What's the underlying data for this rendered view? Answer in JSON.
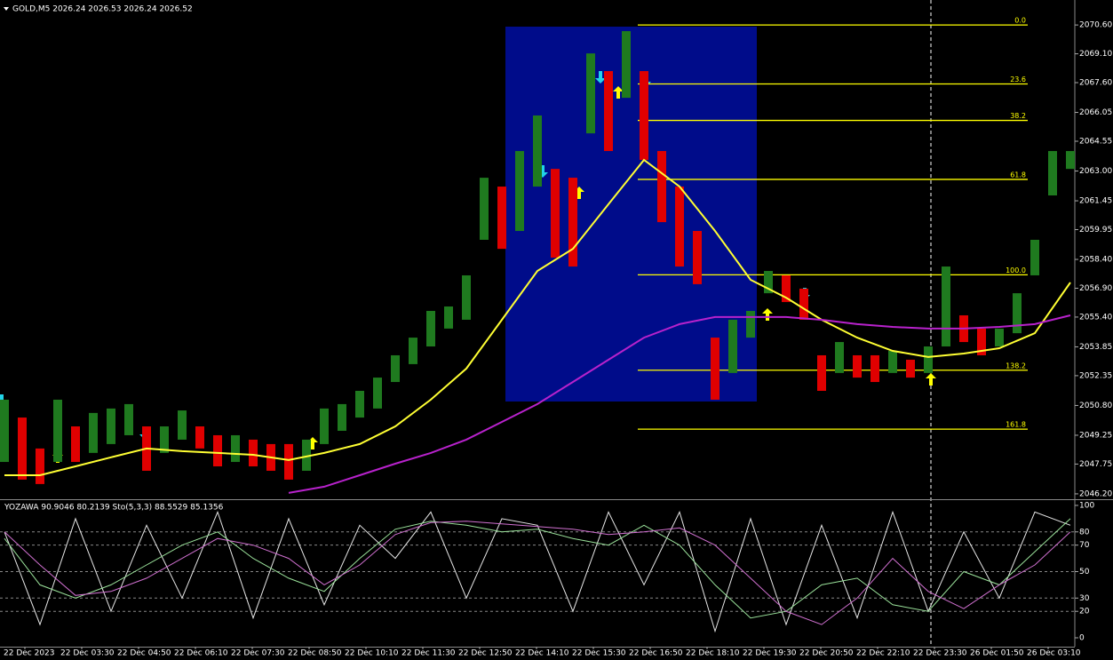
{
  "chart_data": [
    {
      "type": "ohlc-bars",
      "title": "GOLD,M5 2026.24 2026.53 2026.24 2026.52",
      "high": [
        2051.1,
        2050.17,
        2048.56,
        2051.1,
        2049.71,
        2050.41,
        2050.64,
        2050.87,
        2049.71,
        2049.71,
        2050.54,
        2049.71,
        2049.25,
        2049.25,
        2049.02,
        2048.79,
        2048.79,
        2049.02,
        2050.64,
        2050.87,
        2051.56,
        2052.25,
        2053.41,
        2054.33,
        2055.72,
        2055.95,
        2057.57,
        2062.65,
        2062.19,
        2064.04,
        2065.89,
        2063.11,
        2062.65,
        2069.12,
        2068.2,
        2070.28,
        2068.2,
        2064.04,
        2062.19,
        2059.88,
        2054.33,
        2055.26,
        2055.72,
        2057.8,
        2057.57,
        2056.88,
        2053.41,
        2054.1,
        2053.41,
        2053.41,
        2053.64,
        2053.18,
        2053.87,
        2058.03,
        2055.49,
        2054.8,
        2054.8,
        2056.64,
        2059.42,
        2064.04,
        2064.04
      ],
      "low": [
        2047.86,
        2046.94,
        2046.71,
        2047.86,
        2047.86,
        2048.33,
        2048.79,
        2049.25,
        2047.4,
        2048.33,
        2049.02,
        2048.56,
        2047.63,
        2047.86,
        2047.63,
        2047.4,
        2046.94,
        2047.4,
        2048.79,
        2049.48,
        2050.17,
        2050.64,
        2052.02,
        2052.95,
        2053.87,
        2054.8,
        2055.26,
        2059.42,
        2058.95,
        2059.88,
        2062.19,
        2058.49,
        2058.03,
        2064.96,
        2064.04,
        2066.81,
        2063.58,
        2060.34,
        2058.03,
        2057.11,
        2051.1,
        2052.49,
        2054.33,
        2056.64,
        2056.18,
        2055.26,
        2051.56,
        2052.49,
        2052.25,
        2052.02,
        2052.49,
        2052.25,
        2052.49,
        2053.87,
        2054.1,
        2053.41,
        2053.87,
        2054.56,
        2057.57,
        2061.73,
        2063.11
      ],
      "up_color": "#1f7a1f",
      "down_color": "#e00000",
      "overlays": [
        {
          "color": "#ffff33",
          "values": [
            2047.17,
            2047.17,
            2047.63,
            2048.1,
            2048.56,
            2048.42,
            2048.33,
            2048.23,
            2047.96,
            2048.33,
            2048.79,
            2049.71,
            2051.1,
            2052.72,
            2055.26,
            2057.8,
            2058.95,
            2061.27,
            2063.58,
            2062.19,
            2059.88,
            2057.34,
            2056.41,
            2055.26,
            2054.33,
            2053.64,
            2053.32,
            2053.5,
            2053.78,
            2054.56,
            2057.2
          ]
        },
        {
          "color": "#b822cc",
          "values": [
            null,
            null,
            null,
            null,
            null,
            null,
            null,
            null,
            2046.25,
            2046.57,
            2047.17,
            2047.77,
            2048.33,
            2049.02,
            2049.94,
            2050.87,
            2052.02,
            2053.18,
            2054.33,
            2055.03,
            2055.4,
            2055.4,
            2055.4,
            2055.26,
            2055.03,
            2054.89,
            2054.8,
            2054.8,
            2054.89,
            2055.03,
            2055.49
          ]
        }
      ],
      "fibonacci": {
        "color": "#ffff00",
        "high": 2070.6,
        "low": 2057.6,
        "levels": [
          {
            "value": 0,
            "label": "0.0"
          },
          23.6,
          38.2,
          61.8,
          {
            "value": 100,
            "label": "100.0"
          },
          138.2,
          161.8
        ]
      },
      "categories": [
        "22 Dec 2023",
        "22 Dec 03:30",
        "22 Dec 04:50",
        "22 Dec 06:10",
        "22 Dec 07:30",
        "22 Dec 08:50",
        "22 Dec 10:10",
        "22 Dec 11:30",
        "22 Dec 12:50",
        "22 Dec 14:10",
        "22 Dec 15:30",
        "22 Dec 16:50",
        "22 Dec 18:10",
        "22 Dec 19:30",
        "22 Dec 20:50",
        "22 Dec 22:10",
        "22 Dec 23:30",
        "26 Dec 01:50",
        "26 Dec 03:10"
      ],
      "ylim": [
        2045.92,
        2071.9
      ],
      "yticks": [
        {
          "value": 2070.6,
          "label": "2070.60"
        },
        {
          "value": 2069.1,
          "label": "2069.10"
        },
        {
          "value": 2067.6,
          "label": "2067.60"
        },
        2066.05,
        2064.55,
        {
          "value": 2063,
          "label": "2063.00"
        },
        2061.45,
        2059.95,
        {
          "value": 2058.4,
          "label": "2058.40"
        },
        {
          "value": 2056.9,
          "label": "2056.90"
        },
        {
          "value": 2055.4,
          "label": "2055.40"
        },
        2053.85,
        2052.35,
        {
          "value": 2050.8,
          "label": "2050.80"
        },
        2049.25,
        2047.75,
        {
          "value": 2046.2,
          "label": "2046.20"
        }
      ]
    },
    {
      "type": "oscillator",
      "title": "YOZAWA 90.9046 80.2139 Sto(5,3,3) 88.5529 85.1356",
      "series": [
        {
          "color": "#e6e6e6",
          "values": [
            80,
            10,
            90,
            20,
            85,
            30,
            95,
            15,
            90,
            25,
            85,
            60,
            95,
            30,
            90,
            85,
            20,
            95,
            40,
            95,
            5,
            90,
            10,
            85,
            15,
            95,
            20,
            80,
            30,
            95,
            85
          ]
        },
        {
          "color": "#9be39b",
          "values": [
            75,
            40,
            30,
            40,
            55,
            70,
            80,
            60,
            45,
            35,
            60,
            82,
            88,
            85,
            80,
            82,
            75,
            70,
            85,
            70,
            40,
            15,
            20,
            40,
            45,
            25,
            20,
            50,
            40,
            65,
            90
          ]
        },
        {
          "color": "#d070d0",
          "values": [
            80,
            55,
            32,
            35,
            45,
            60,
            75,
            70,
            60,
            40,
            55,
            78,
            87,
            88,
            86,
            84,
            82,
            78,
            80,
            83,
            70,
            45,
            20,
            10,
            30,
            60,
            35,
            22,
            40,
            55,
            80
          ]
        }
      ],
      "ylim": [
        -6.7,
        104
      ],
      "yticks": [
        100,
        80,
        70,
        50,
        30,
        20,
        0
      ],
      "grid": true
    }
  ]
}
